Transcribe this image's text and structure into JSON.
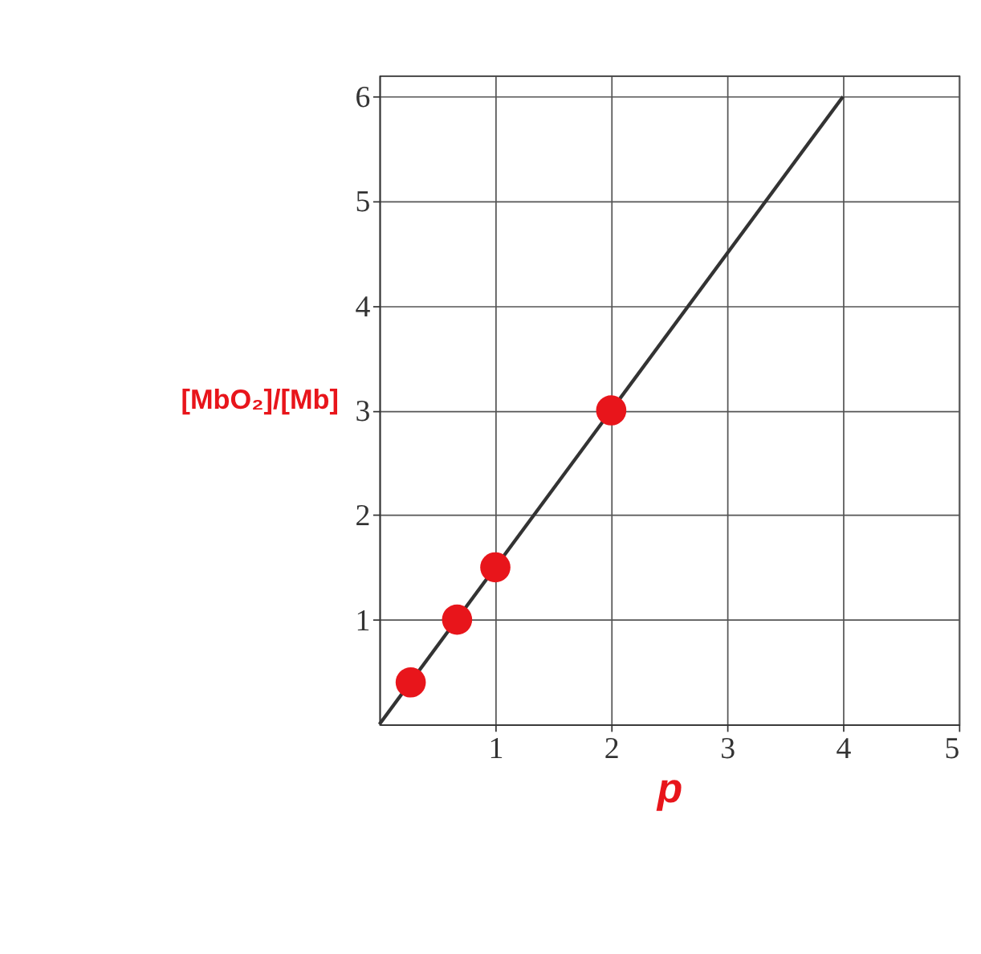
{
  "chart_data": {
    "type": "scatter",
    "xlabel": "p",
    "ylabel": "[MbO₂]/[Mb]",
    "xlim": [
      0,
      5
    ],
    "ylim": [
      0,
      6.2
    ],
    "xticks": [
      1,
      2,
      3,
      4,
      5
    ],
    "yticks": [
      1,
      2,
      3,
      4,
      5,
      6
    ],
    "grid": true,
    "series": [
      {
        "type": "line",
        "color": "#333333",
        "marker": "none",
        "x": [
          0,
          4
        ],
        "values": [
          0,
          6
        ]
      },
      {
        "color": "#e8151b",
        "marker": "circle",
        "x": [
          0.27,
          0.67,
          1,
          2
        ],
        "values": [
          0.4,
          1,
          1.5,
          3
        ]
      }
    ]
  }
}
